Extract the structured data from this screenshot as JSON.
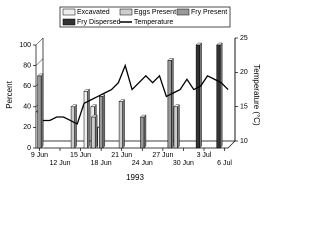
{
  "chart_data": {
    "type": "bar",
    "xlabel": "1993",
    "ylabel": "Percent",
    "y2label": "Temperature (°C)",
    "categories": [
      "9 Jun",
      null,
      null,
      "12 Jun",
      null,
      null,
      "15 Jun",
      null,
      null,
      "18 Jun",
      null,
      null,
      "21 Jun",
      null,
      null,
      "24 Jun",
      null,
      null,
      "27 Jun",
      null,
      null,
      "30 Jun",
      null,
      null,
      "3 Jul",
      null,
      null,
      "6 Jul"
    ],
    "series": [
      {
        "name": "Excavated",
        "color": "#eeeeee",
        "values": [
          35,
          null,
          null,
          null,
          null,
          null,
          null,
          55,
          40,
          20,
          null,
          null,
          null,
          null,
          null,
          null,
          null,
          null,
          null,
          null,
          null,
          null,
          null,
          null,
          null,
          null,
          null,
          null
        ]
      },
      {
        "name": "Eggs Present",
        "color": "#cccccc",
        "values": [
          null,
          null,
          null,
          null,
          null,
          40,
          null,
          null,
          30,
          null,
          null,
          null,
          45,
          null,
          null,
          null,
          null,
          null,
          null,
          null,
          40,
          null,
          null,
          null,
          null,
          null,
          null,
          null
        ]
      },
      {
        "name": "Fry Present",
        "color": "#999999",
        "values": [
          70,
          null,
          null,
          null,
          null,
          null,
          null,
          null,
          null,
          50,
          null,
          null,
          null,
          null,
          null,
          30,
          null,
          null,
          null,
          85,
          null,
          null,
          null,
          null,
          null,
          null,
          null,
          null
        ]
      },
      {
        "name": "Fry Dispersed",
        "color": "#333333",
        "values": [
          null,
          null,
          null,
          null,
          null,
          null,
          null,
          null,
          null,
          null,
          null,
          null,
          null,
          null,
          null,
          null,
          null,
          null,
          null,
          null,
          null,
          null,
          null,
          100,
          null,
          null,
          100,
          null
        ]
      },
      {
        "name": "Temperature",
        "color": "#000000",
        "axis": "y2",
        "values": [
          13.5,
          13.5,
          14,
          14,
          13.5,
          13,
          16,
          16.5,
          17,
          17.5,
          18,
          19,
          21.5,
          18,
          19,
          20,
          19,
          20,
          17,
          17.5,
          18,
          19.5,
          18,
          18.5,
          20,
          19.5,
          19,
          18
        ]
      }
    ],
    "ylim": [
      0,
      100
    ],
    "yticks": [
      0,
      20,
      40,
      60,
      80,
      100
    ],
    "y2lim": [
      10,
      25
    ],
    "y2ticks": [
      10,
      15,
      20,
      25
    ]
  }
}
